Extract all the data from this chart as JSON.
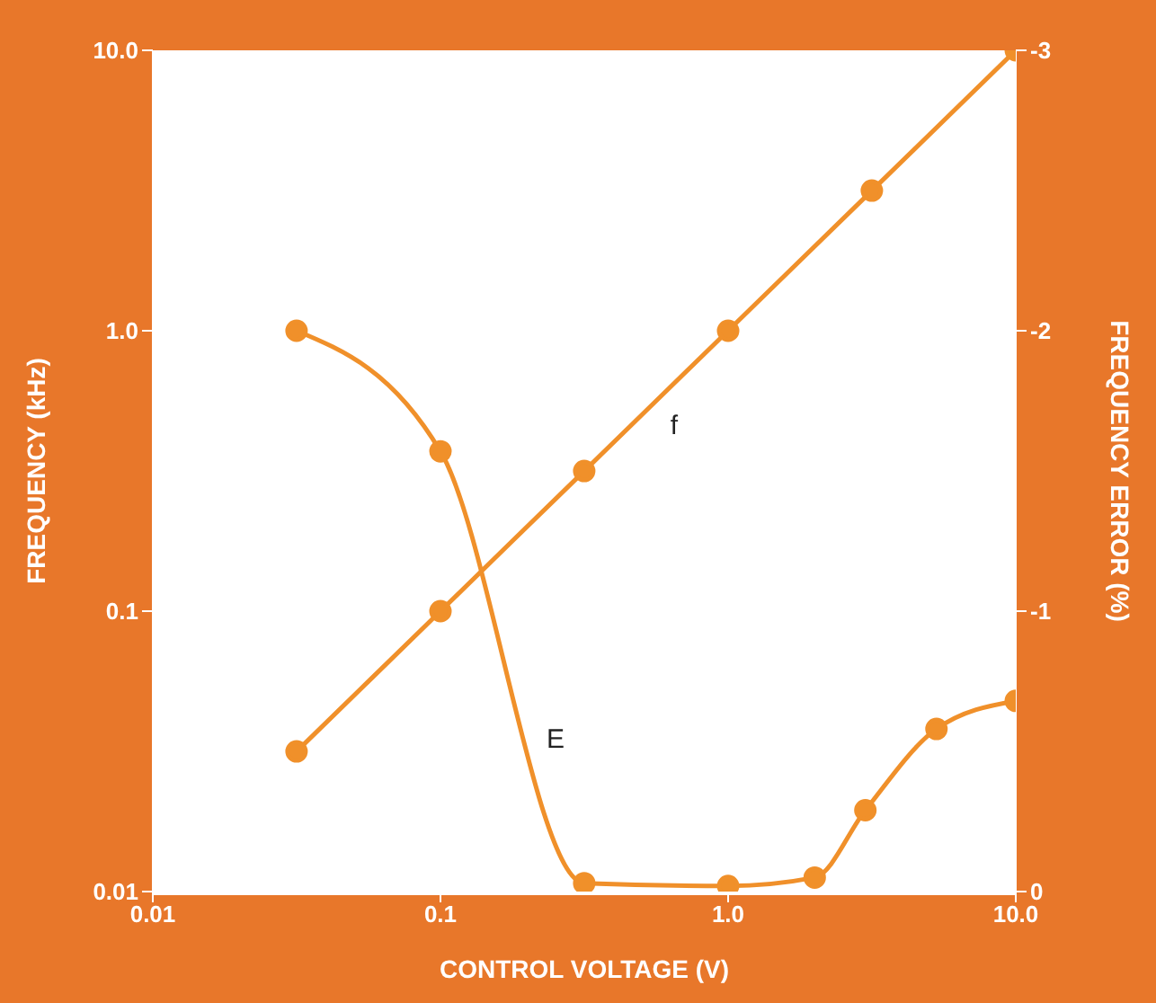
{
  "chart_data": {
    "type": "line",
    "xlabel": "CONTROL VOLTAGE (V)",
    "ylabel": "FREQUENCY (kHz)",
    "y2label": "FREQUENCY ERROR (%)",
    "log": "xy",
    "marker": "circle",
    "line_style": "solid",
    "xlim": [
      0.01,
      10
    ],
    "xticks": [
      {
        "value": 0.01,
        "label": "0.01"
      },
      {
        "value": 0.1,
        "label": "0.1"
      },
      {
        "value": 1,
        "label": "1.0"
      },
      {
        "value": 10,
        "label": "10.0"
      }
    ],
    "ylim": [
      0.01,
      10
    ],
    "yticks": [
      {
        "value": 0.01,
        "label": "0.01"
      },
      {
        "value": 0.1,
        "label": "0.1"
      },
      {
        "value": 1,
        "label": "1.0"
      },
      {
        "value": 10,
        "label": "10.0"
      }
    ],
    "y2lim": [
      0,
      -3
    ],
    "y2ticks": [
      0,
      -1,
      -2,
      -3
    ],
    "series": [
      {
        "name": "f",
        "color": "#f0902a",
        "x": [
          0.0316,
          0.1,
          0.316,
          1,
          3.16,
          10
        ],
        "values": [
          0.0316,
          0.1,
          0.316,
          1,
          3.16,
          10
        ]
      },
      {
        "name": "E",
        "color": "#f0902a",
        "axis": "y2",
        "x": [
          0.0316,
          0.1,
          0.316,
          1,
          2,
          3,
          5.3,
          10
        ],
        "values": [
          -2,
          -1.57,
          -0.03,
          -0.02,
          -0.05,
          -0.29,
          -0.58,
          -0.68
        ]
      }
    ]
  }
}
